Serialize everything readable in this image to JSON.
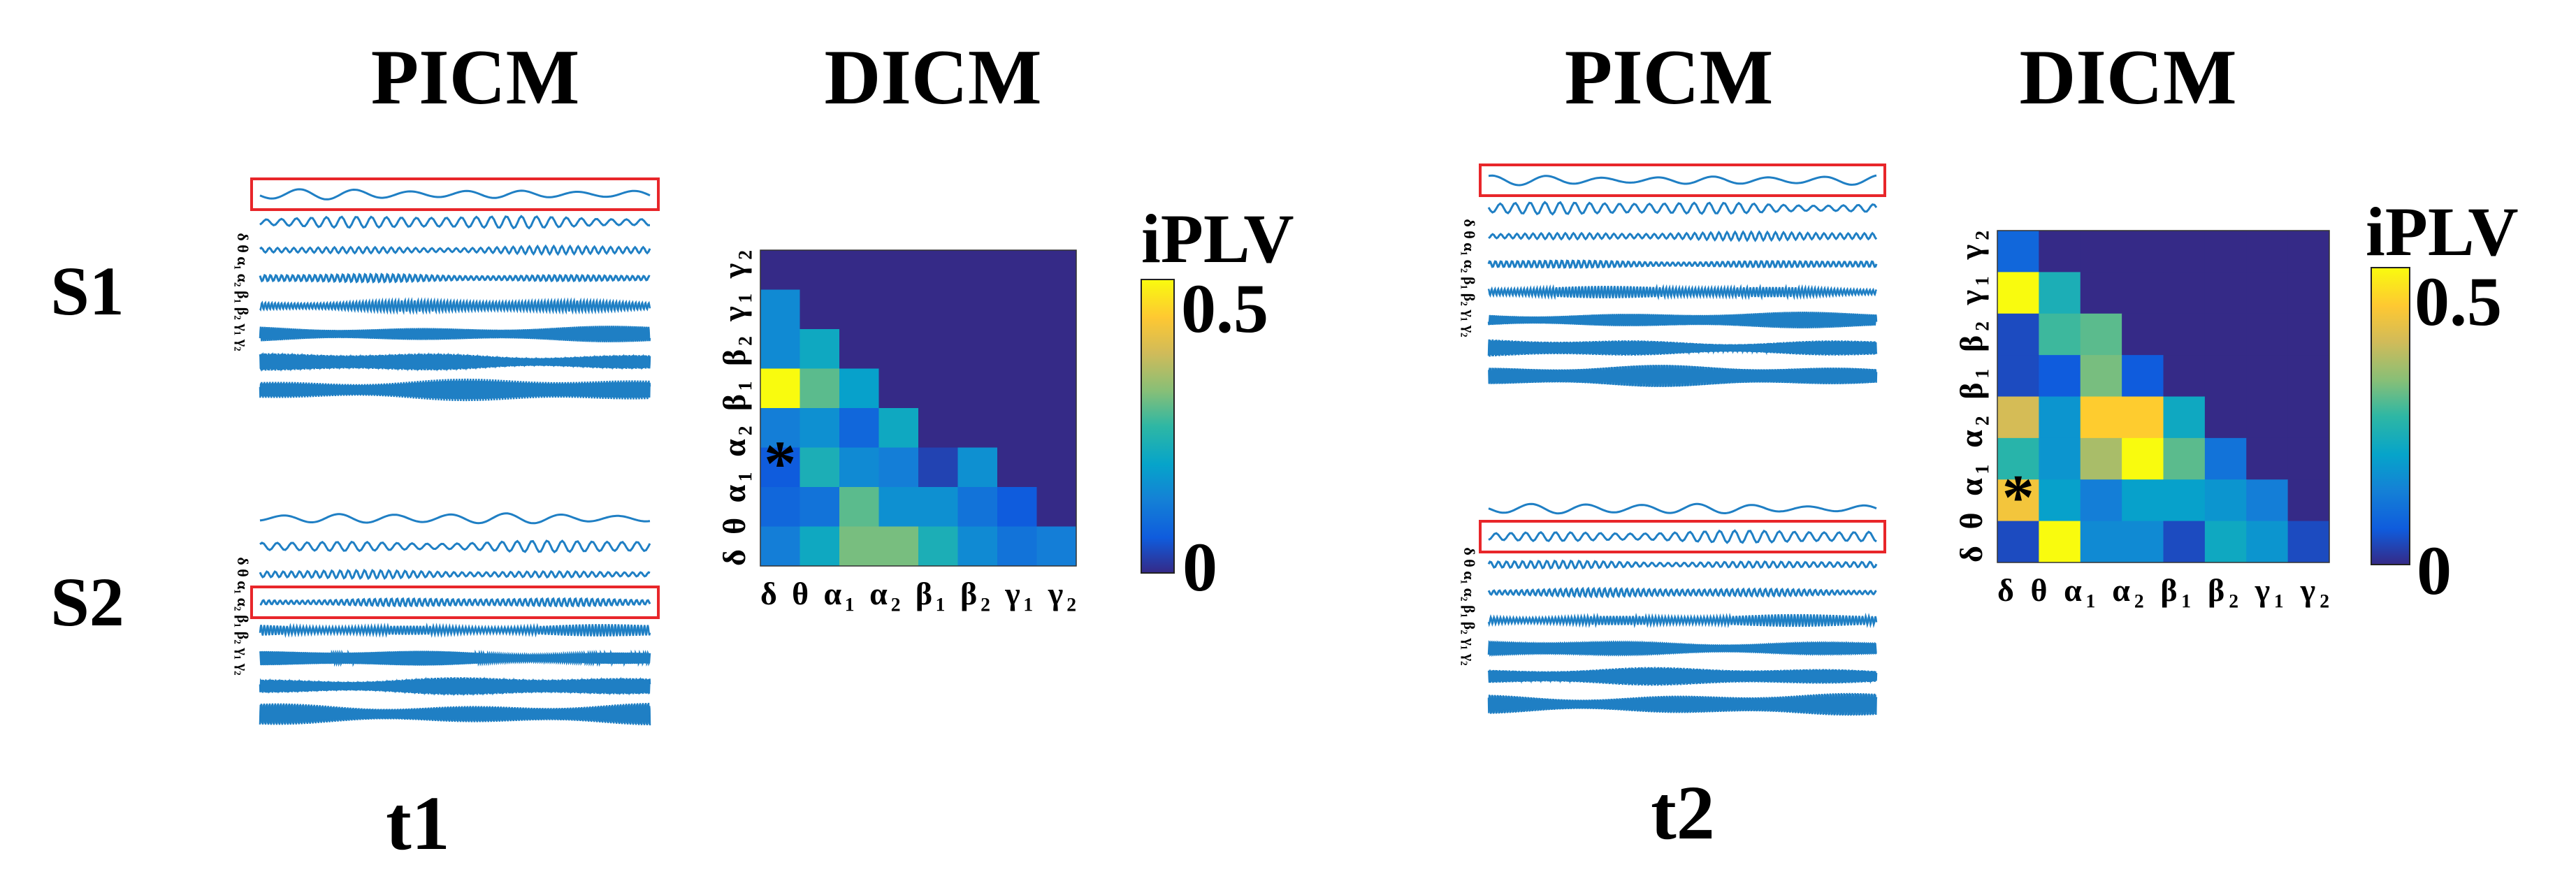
{
  "titles": {
    "picm": "PICM",
    "dicm": "DICM"
  },
  "row_labels": [
    "S1",
    "S2"
  ],
  "time_labels": [
    "t1",
    "t2"
  ],
  "bands": [
    "δ",
    "θ",
    "α₁",
    "α₂",
    "β₁",
    "β₂",
    "γ₁",
    "γ₂"
  ],
  "colorbar": {
    "title": "iPLV",
    "min_label": "0",
    "max_label": "0.5",
    "min": 0,
    "max": 0.5
  },
  "significance_marker": "*",
  "colors": {
    "signal": "#1f7fc4",
    "highlight_box": "#e8262a"
  },
  "panels": [
    {
      "id": "t1",
      "signal_highlight": {
        "S1": "δ",
        "S2": "α₂"
      },
      "significant_cell": {
        "row": "α₁",
        "col": "δ"
      },
      "matrix": [
        [
          0.0,
          0.0,
          0.0,
          0.0,
          0.0,
          0.0,
          0.0,
          0.0
        ],
        [
          0.14,
          0.0,
          0.0,
          0.0,
          0.0,
          0.0,
          0.0,
          0.0
        ],
        [
          0.14,
          0.2,
          0.0,
          0.0,
          0.0,
          0.0,
          0.0,
          0.0
        ],
        [
          0.5,
          0.28,
          0.18,
          0.0,
          0.0,
          0.0,
          0.0,
          0.0
        ],
        [
          0.12,
          0.15,
          0.08,
          0.2,
          0.0,
          0.0,
          0.0,
          0.0
        ],
        [
          0.06,
          0.22,
          0.14,
          0.12,
          0.03,
          0.15,
          0.0,
          0.0
        ],
        [
          0.08,
          0.1,
          0.28,
          0.15,
          0.15,
          0.1,
          0.06,
          0.0
        ],
        [
          0.12,
          0.2,
          0.3,
          0.3,
          0.22,
          0.14,
          0.1,
          0.12
        ]
      ]
    },
    {
      "id": "t2",
      "signal_highlight": {
        "S1": "δ",
        "S2": "θ"
      },
      "significant_cell": {
        "row": "θ",
        "col": "δ"
      },
      "matrix": [
        [
          0.08,
          0.0,
          0.0,
          0.0,
          0.0,
          0.0,
          0.0,
          0.0
        ],
        [
          0.5,
          0.22,
          0.0,
          0.0,
          0.0,
          0.0,
          0.0,
          0.0
        ],
        [
          0.04,
          0.26,
          0.28,
          0.0,
          0.0,
          0.0,
          0.0,
          0.0
        ],
        [
          0.04,
          0.06,
          0.3,
          0.06,
          0.0,
          0.0,
          0.0,
          0.0
        ],
        [
          0.38,
          0.16,
          0.44,
          0.44,
          0.2,
          0.0,
          0.0,
          0.0
        ],
        [
          0.24,
          0.16,
          0.34,
          0.5,
          0.28,
          0.1,
          0.0,
          0.0
        ],
        [
          0.42,
          0.18,
          0.12,
          0.18,
          0.18,
          0.16,
          0.12,
          0.0
        ],
        [
          0.04,
          0.5,
          0.14,
          0.14,
          0.04,
          0.2,
          0.16,
          0.04
        ]
      ]
    }
  ]
}
